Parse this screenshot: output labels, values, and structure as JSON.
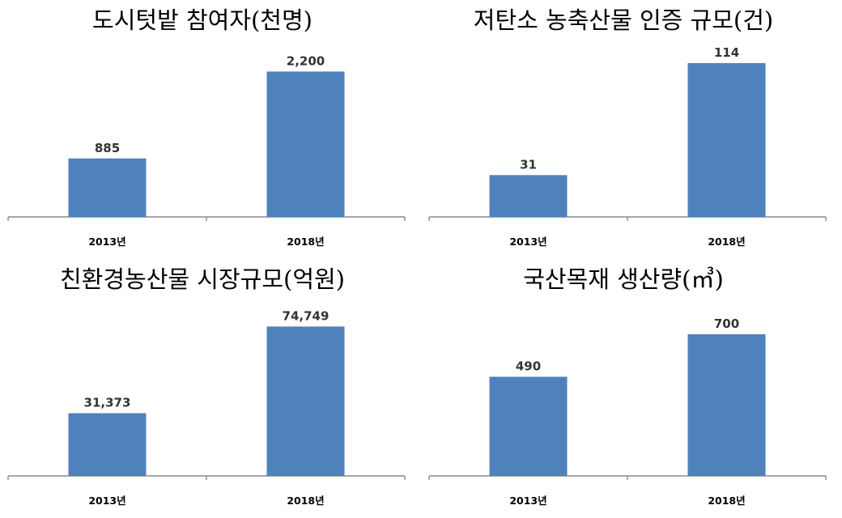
{
  "chart_data": [
    {
      "type": "bar",
      "title": "도시텃밭 참여자(천명)",
      "categories": [
        "2013년",
        "2018년"
      ],
      "values": [
        885,
        2200
      ],
      "ylim": [
        0,
        2450
      ],
      "grid": false,
      "legend": "none",
      "color": "#4f81bd"
    },
    {
      "type": "bar",
      "title": "저탄소 농축산물 인증 규모(건)",
      "categories": [
        "2013년",
        "2018년"
      ],
      "values": [
        31,
        114
      ],
      "ylim": [
        0,
        120
      ],
      "grid": false,
      "legend": "none",
      "color": "#4f81bd"
    },
    {
      "type": "bar",
      "title": "친환경농산물 시장규모(억원)",
      "categories": [
        "2013년",
        "2018년"
      ],
      "values": [
        31373,
        74749
      ],
      "ylim": [
        0,
        81000
      ],
      "grid": false,
      "legend": "none",
      "color": "#4f81bd"
    },
    {
      "type": "bar",
      "title": "국산목재 생산량(㎥)",
      "categories": [
        "2013년",
        "2018년"
      ],
      "values": [
        490,
        700
      ],
      "ylim": [
        0,
        800
      ],
      "grid": false,
      "legend": "none",
      "color": "#4f81bd"
    }
  ]
}
